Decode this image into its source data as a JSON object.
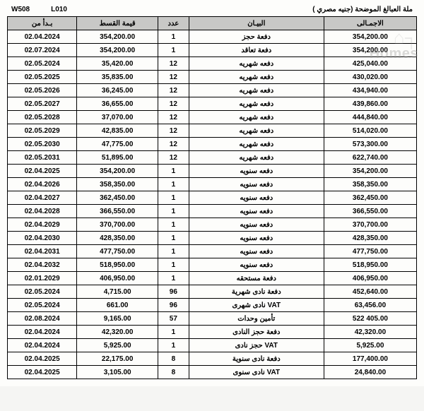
{
  "header": {
    "code1": "W508",
    "code2": "L010",
    "title_rtl": "ملة العبالغ الموضحة (جنيه مصري )",
    "pretext_rtl": "..."
  },
  "watermark": {
    "line1": "⌂┐",
    "line2": "Homes"
  },
  "columns": {
    "date": "بـدأ من",
    "amount": "قيمة القسط",
    "count": "عدد",
    "desc": "البيـان",
    "total": "الاجمـالى"
  },
  "rows": [
    {
      "date": "02.04.2024",
      "amount": "354,200.00",
      "count": "1",
      "desc": "دفعة حجز",
      "total": "354,200.00"
    },
    {
      "date": "02.07.2024",
      "amount": "354,200.00",
      "count": "1",
      "desc": "دفعة تعاقد",
      "total": "354,200.00"
    },
    {
      "date": "02.05.2024",
      "amount": "35,420.00",
      "count": "12",
      "desc": "دفعه شهريه",
      "total": "425,040.00"
    },
    {
      "date": "02.05.2025",
      "amount": "35,835.00",
      "count": "12",
      "desc": "دفعه شهريه",
      "total": "430,020.00"
    },
    {
      "date": "02.05.2026",
      "amount": "36,245.00",
      "count": "12",
      "desc": "دفعه شهريه",
      "total": "434,940.00"
    },
    {
      "date": "02.05.2027",
      "amount": "36,655.00",
      "count": "12",
      "desc": "دفعه شهريه",
      "total": "439,860.00"
    },
    {
      "date": "02.05.2028",
      "amount": "37,070.00",
      "count": "12",
      "desc": "دفعه شهريه",
      "total": "444,840.00"
    },
    {
      "date": "02.05.2029",
      "amount": "42,835.00",
      "count": "12",
      "desc": "دفعه شهريه",
      "total": "514,020.00"
    },
    {
      "date": "02.05.2030",
      "amount": "47,775.00",
      "count": "12",
      "desc": "دفعه شهريه",
      "total": "573,300.00"
    },
    {
      "date": "02.05.2031",
      "amount": "51,895.00",
      "count": "12",
      "desc": "دفعه شهريه",
      "total": "622,740.00"
    },
    {
      "date": "02.04.2025",
      "amount": "354,200.00",
      "count": "1",
      "desc": "دفعه سنويه",
      "total": "354,200.00"
    },
    {
      "date": "02.04.2026",
      "amount": "358,350.00",
      "count": "1",
      "desc": "دفعه سنويه",
      "total": "358,350.00"
    },
    {
      "date": "02.04.2027",
      "amount": "362,450.00",
      "count": "1",
      "desc": "دفعه سنويه",
      "total": "362,450.00"
    },
    {
      "date": "02.04.2028",
      "amount": "366,550.00",
      "count": "1",
      "desc": "دفعه سنويه",
      "total": "366,550.00"
    },
    {
      "date": "02.04.2029",
      "amount": "370,700.00",
      "count": "1",
      "desc": "دفعه سنويه",
      "total": "370,700.00"
    },
    {
      "date": "02.04.2030",
      "amount": "428,350.00",
      "count": "1",
      "desc": "دفعه سنويه",
      "total": "428,350.00"
    },
    {
      "date": "02.04.2031",
      "amount": "477,750.00",
      "count": "1",
      "desc": "دفعه سنويه",
      "total": "477,750.00"
    },
    {
      "date": "02.04.2032",
      "amount": "518,950.00",
      "count": "1",
      "desc": "دفعه سنويه",
      "total": "518,950.00"
    },
    {
      "date": "02.01.2029",
      "amount": "406,950.00",
      "count": "1",
      "desc": "دفعة مستحقه",
      "total": "406,950.00"
    },
    {
      "date": "02.05.2024",
      "amount": "4,715.00",
      "count": "96",
      "desc": "دفعة نادى شهرية",
      "total": "452,640.00"
    },
    {
      "date": "02.05.2024",
      "amount": "661.00",
      "count": "96",
      "desc": "VAT نادى شهرى",
      "total": "63,456.00"
    },
    {
      "date": "02.08.2024",
      "amount": "9,165.00",
      "count": "57",
      "desc": "تأمين وحدات",
      "total": "522 405.00"
    },
    {
      "date": "02.04.2024",
      "amount": "42,320.00",
      "count": "1",
      "desc": "دفعة حجز النادى",
      "total": "42,320.00"
    },
    {
      "date": "02.04.2024",
      "amount": "5,925.00",
      "count": "1",
      "desc": "VAT حجز نادى",
      "total": "5,925.00"
    },
    {
      "date": "02.04.2025",
      "amount": "22,175.00",
      "count": "8",
      "desc": "دفعة نادى سنوية",
      "total": "177,400.00"
    },
    {
      "date": "02.04.2025",
      "amount": "3,105.00",
      "count": "8",
      "desc": "VAT نادى سنوى",
      "total": "24,840.00"
    }
  ]
}
